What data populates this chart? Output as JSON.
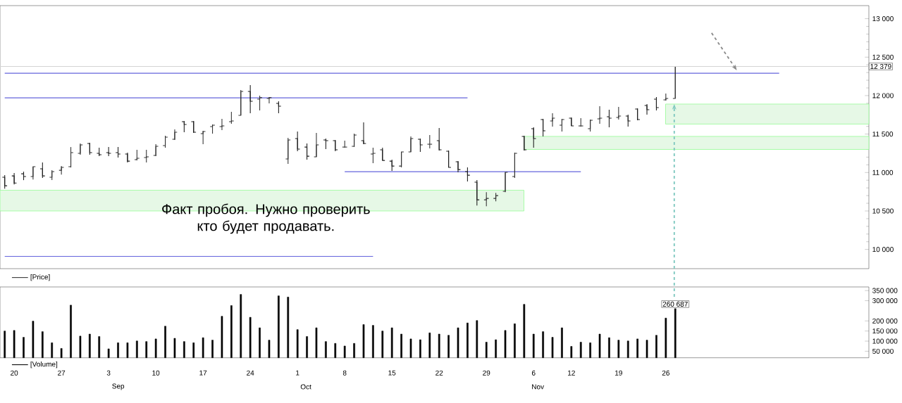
{
  "chart_data": [
    {
      "type": "candlestick",
      "tick_labels": "y",
      "legend": "bottom left",
      "categories": [
        null,
        "20",
        null,
        null,
        null,
        null,
        "27",
        null,
        null,
        null,
        null,
        "3",
        null,
        null,
        null,
        null,
        "10",
        null,
        null,
        null,
        null,
        "17",
        null,
        null,
        null,
        null,
        "24",
        null,
        null,
        null,
        null,
        "1",
        null,
        null,
        null,
        null,
        "8",
        null,
        null,
        null,
        null,
        "15",
        null,
        null,
        null,
        null,
        "22",
        null,
        null,
        null,
        null,
        "29",
        null,
        null,
        null,
        null,
        "6",
        null,
        null,
        null,
        "12",
        null,
        null,
        null,
        null,
        "19",
        null,
        null,
        null,
        null,
        "26",
        null,
        null,
        null,
        null,
        null,
        null,
        null,
        null,
        null,
        null,
        null,
        null,
        null,
        null,
        null,
        null,
        null,
        null,
        null,
        null,
        null
      ],
      "ylim": [
        9750,
        13170
      ],
      "yticks": [
        {
          "value": 10000,
          "label": "10 000"
        },
        {
          "value": 10500,
          "label": "10 500"
        },
        {
          "value": 11000,
          "label": "11 000"
        },
        {
          "value": 11500,
          "label": "11 500"
        },
        {
          "value": 12000,
          "label": "12 000"
        },
        {
          "value": 12500,
          "label": "12 500"
        },
        {
          "value": 13000,
          "label": "13 000"
        }
      ],
      "series": [
        {
          "name": "[Price]",
          "type": "candlestick",
          "color": "#333333",
          "colors": [
            "#1c1c1c",
            "#1c1c1c",
            "#1c1c1c",
            "#333333",
            "#1c1c1c",
            "#333333",
            "#333333",
            "#333333",
            "#333333",
            "#1c1c1c",
            "#1c1c1c",
            "#1c1c1c",
            "#1c1c1c",
            "#1c1c1c",
            "#333333",
            "#333333",
            "#333333",
            "#333333",
            "#333333",
            "#1c1c1c",
            "#1c1c1c",
            "#333333",
            "#333333",
            "#333333",
            "#333333",
            "#333333",
            "#1c1c1c",
            "#333333",
            "#333333",
            "#1c1c1c",
            "#333333",
            "#1c1c1c",
            "#1c1c1c",
            "#333333",
            "#1c1c1c",
            "#1c1c1c",
            "#333333",
            "#333333",
            "#1c1c1c",
            "#333333",
            "#1c1c1c",
            "#1c1c1c",
            "#333333",
            "#333333",
            "#1c1c1c",
            "#333333",
            "#1c1c1c",
            "#1c1c1c",
            "#1c1c1c",
            "#1c1c1c",
            "#1c1c1c",
            "#333333",
            "#333333",
            "#333333",
            "#333333",
            "#1c1c1c",
            "#1c1c1c",
            "#1c1c1c",
            "#333333",
            "#333333",
            "#1c1c1c",
            "#333333",
            "#333333",
            "#333333",
            "#1c1c1c",
            "#333333",
            "#1c1c1c",
            "#1c1c1c",
            "#1c1c1c",
            "#1c1c1c",
            "#333333",
            "#333333",
            null,
            null,
            null,
            null,
            null,
            null,
            null,
            null,
            null,
            null,
            null,
            null,
            null,
            null,
            null,
            null,
            null,
            null,
            null,
            null
          ],
          "ohlc": [
            [
              10938,
              10965,
              10791,
              10828
            ],
            [
              10956,
              10993,
              10846,
              10864
            ],
            [
              10983,
              11011,
              10901,
              10947
            ],
            [
              10947,
              11075,
              10910,
              11075
            ],
            [
              11048,
              11130,
              10929,
              10956
            ],
            [
              10938,
              11029,
              10901,
              11011
            ],
            [
              11029,
              11084,
              10974,
              11066
            ],
            [
              11075,
              11331,
              11066,
              11258
            ],
            [
              11249,
              11377,
              11231,
              11359
            ],
            [
              11377,
              11386,
              11231,
              11258
            ],
            [
              11249,
              11322,
              11212,
              11231
            ],
            [
              11258,
              11331,
              11212,
              11249
            ],
            [
              11258,
              11331,
              11194,
              11240
            ],
            [
              11240,
              11258,
              11130,
              11148
            ],
            [
              11167,
              11295,
              11157,
              11185
            ],
            [
              11194,
              11295,
              11130,
              11203
            ],
            [
              11222,
              11368,
              11212,
              11341
            ],
            [
              11350,
              11478,
              11322,
              11460
            ],
            [
              11432,
              11560,
              11423,
              11524
            ],
            [
              11661,
              11670,
              11524,
              11625
            ],
            [
              11661,
              11670,
              11515,
              11524
            ],
            [
              11505,
              11542,
              11368,
              11533
            ],
            [
              11597,
              11625,
              11505,
              11615
            ],
            [
              11597,
              11698,
              11551,
              11606
            ],
            [
              11661,
              11789,
              11634,
              11670
            ],
            [
              11744,
              12073,
              11744,
              12055
            ],
            [
              12055,
              12137,
              11771,
              11927
            ],
            [
              11954,
              12000,
              11808,
              11973
            ],
            [
              11963,
              11982,
              11899,
              11973
            ],
            [
              11899,
              11927,
              11771,
              11863
            ],
            [
              11176,
              11450,
              11112,
              11423
            ],
            [
              11441,
              11533,
              11277,
              11304
            ],
            [
              11331,
              11377,
              11167,
              11212
            ],
            [
              11203,
              11515,
              11203,
              11359
            ],
            [
              11423,
              11441,
              11304,
              11414
            ],
            [
              11414,
              11423,
              11277,
              11295
            ],
            [
              11331,
              11414,
              11322,
              11331
            ],
            [
              11341,
              11505,
              11331,
              11487
            ],
            [
              11414,
              11652,
              11368,
              11377
            ],
            [
              11240,
              11322,
              11121,
              11249
            ],
            [
              11295,
              11322,
              11157,
              11157
            ],
            [
              11148,
              11167,
              11020,
              11084
            ],
            [
              11084,
              11267,
              11066,
              11267
            ],
            [
              11267,
              11469,
              11267,
              11441
            ],
            [
              11432,
              11441,
              11267,
              11359
            ],
            [
              11368,
              11487,
              11313,
              11368
            ],
            [
              11414,
              11579,
              11286,
              11295
            ],
            [
              11277,
              11286,
              11066,
              11066
            ],
            [
              11139,
              11148,
              11002,
              11038
            ],
            [
              11011,
              11066,
              10883,
              10965
            ],
            [
              10874,
              10901,
              10571,
              10645
            ],
            [
              10645,
              10745,
              10562,
              10663
            ],
            [
              10663,
              10736,
              10626,
              10700
            ],
            [
              10755,
              11002,
              10745,
              11002
            ],
            [
              10947,
              11258,
              10929,
              11249
            ],
            [
              11469,
              11478,
              11286,
              11295
            ],
            [
              11570,
              11588,
              11322,
              11441
            ],
            [
              11689,
              11698,
              11469,
              11542
            ],
            [
              11670,
              11771,
              11597,
              11707
            ],
            [
              11615,
              11698,
              11533,
              11689
            ],
            [
              11707,
              11716,
              11606,
              11606
            ],
            [
              11606,
              11707,
              11597,
              11606
            ],
            [
              11570,
              11689,
              11533,
              11679
            ],
            [
              11698,
              11863,
              11634,
              11707
            ],
            [
              11725,
              11817,
              11588,
              11707
            ],
            [
              11716,
              11853,
              11689,
              11734
            ],
            [
              11734,
              11753,
              11597,
              11670
            ],
            [
              11826,
              11835,
              11679,
              11689
            ],
            [
              11872,
              11890,
              11753,
              11817
            ],
            [
              11954,
              11982,
              11808,
              11844
            ],
            [
              11945,
              12027,
              11936,
              11963
            ],
            [
              11963,
              12379,
              11963,
              12379
            ],
            null,
            null,
            null,
            null,
            null,
            null,
            null,
            null,
            null,
            null,
            null,
            null,
            null,
            null,
            null,
            null,
            null,
            null,
            null,
            null
          ]
        },
        {
          "type": "line",
          "color": "#6464dc",
          "values": [
            12290,
            12290,
            12290,
            12290,
            12290,
            12290,
            12290,
            12290,
            12290,
            12290,
            12290,
            12290,
            12290,
            12290,
            12290,
            12290,
            12290,
            12290,
            12290,
            12290,
            12290,
            12290,
            12290,
            12290,
            12290,
            12290,
            12290,
            12290,
            12290,
            12290,
            12290,
            12290,
            12290,
            12290,
            12290,
            12290,
            12290,
            12290,
            12290,
            12290,
            12290,
            12290,
            12290,
            12290,
            12290,
            12290,
            12290,
            12290,
            12290,
            12290,
            12290,
            12290,
            12290,
            12290,
            12290,
            12290,
            12290,
            12290,
            12290,
            12290,
            12290,
            12290,
            12290,
            12290,
            12290,
            12290,
            12290,
            12290,
            12290,
            12290,
            12290,
            12290,
            12290,
            12290,
            12290,
            12290,
            12290,
            12290,
            12290,
            12290,
            12290,
            12290,
            12290,
            null,
            null,
            null,
            null,
            null,
            null,
            null,
            null,
            null
          ]
        },
        {
          "type": "line",
          "color": "#6464dc",
          "values": [
            11970,
            11970,
            11970,
            11970,
            11970,
            11970,
            11970,
            11970,
            11970,
            11970,
            11970,
            11970,
            11970,
            11970,
            11970,
            11970,
            11970,
            11970,
            11970,
            11970,
            11970,
            11970,
            11970,
            11970,
            11970,
            11970,
            11970,
            11970,
            11970,
            11970,
            11970,
            11970,
            11970,
            11970,
            11970,
            11970,
            11970,
            11970,
            11970,
            11970,
            11970,
            11970,
            11970,
            11970,
            11970,
            11970,
            11970,
            11970,
            11970,
            11970,
            null,
            null,
            null,
            null,
            null,
            null,
            null,
            null,
            null,
            null,
            null,
            null,
            null,
            null,
            null,
            null,
            null,
            null,
            null,
            null,
            null,
            null,
            null,
            null,
            null,
            null,
            null,
            null,
            null,
            null,
            null,
            null,
            null,
            null,
            null,
            null,
            null,
            null,
            null,
            null,
            null,
            null
          ]
        },
        {
          "type": "line",
          "color": "#6464dc",
          "values": [
            null,
            null,
            null,
            null,
            null,
            null,
            null,
            null,
            null,
            null,
            null,
            null,
            null,
            null,
            null,
            null,
            null,
            null,
            null,
            null,
            null,
            null,
            null,
            null,
            null,
            null,
            null,
            null,
            null,
            null,
            null,
            null,
            null,
            null,
            null,
            null,
            11010,
            11010,
            11010,
            11010,
            11010,
            11010,
            11010,
            11010,
            11010,
            11010,
            11010,
            11010,
            11010,
            11010,
            11010,
            11010,
            11010,
            11010,
            11010,
            11010,
            11010,
            11010,
            11010,
            11010,
            11010,
            11010,
            null,
            null,
            null,
            null,
            null,
            null,
            null,
            null,
            null,
            null,
            null,
            null,
            null,
            null,
            null,
            null,
            null,
            null,
            null,
            null,
            null,
            null,
            null,
            null,
            null,
            null,
            null,
            null,
            null,
            null
          ]
        },
        {
          "type": "line",
          "color": "#6464dc",
          "values": [
            9910,
            9910,
            9910,
            9910,
            9910,
            9910,
            9910,
            9910,
            9910,
            9910,
            9910,
            9910,
            9910,
            9910,
            9910,
            9910,
            9910,
            9910,
            9910,
            9910,
            9910,
            9910,
            9910,
            9910,
            9910,
            9910,
            9910,
            9910,
            9910,
            9910,
            9910,
            9910,
            9910,
            9910,
            9910,
            9910,
            9910,
            9910,
            9910,
            9910,
            null,
            null,
            null,
            null,
            null,
            null,
            null,
            null,
            null,
            null,
            null,
            null,
            null,
            null,
            null,
            null,
            null,
            null,
            null,
            null,
            null,
            null,
            null,
            null,
            null,
            null,
            null,
            null,
            null,
            null,
            null,
            null,
            null,
            null,
            null,
            null,
            null,
            null,
            null,
            null,
            null,
            null,
            null,
            null,
            null,
            null,
            null,
            null,
            null,
            null,
            null,
            null
          ]
        }
      ],
      "bands": [
        {
          "axis": "y",
          "from": 10500,
          "to": 10770,
          "color": "#e6f8e6"
        },
        {
          "axis": "y",
          "from": 11300,
          "to": 11470,
          "color": "#e6f8e6"
        },
        {
          "axis": "y",
          "from": 11630,
          "to": 11890,
          "color": "#e6f8e6"
        }
      ],
      "ref_lines": [
        {
          "axis": "y",
          "value": 12379,
          "label": "12 379",
          "color": "#d4d4d4"
        }
      ],
      "annotations": [
        "Факт пробоя. Нужно проверить кто будет продавать."
      ]
    },
    {
      "type": "bar",
      "legend": "bottom left",
      "categories": [
        null,
        "20",
        null,
        null,
        null,
        null,
        "27",
        null,
        null,
        null,
        null,
        "3",
        null,
        null,
        null,
        null,
        "10",
        null,
        null,
        null,
        null,
        "17",
        null,
        null,
        null,
        null,
        "24",
        null,
        null,
        null,
        null,
        "1",
        null,
        null,
        null,
        null,
        "8",
        null,
        null,
        null,
        null,
        "15",
        null,
        null,
        null,
        null,
        "22",
        null,
        null,
        null,
        null,
        "29",
        null,
        null,
        null,
        null,
        "6",
        null,
        null,
        null,
        "12",
        null,
        null,
        null,
        null,
        "19",
        null,
        null,
        null,
        null,
        "26",
        null,
        null,
        null,
        null,
        null,
        null,
        null,
        null,
        null,
        null,
        null,
        null,
        null,
        null,
        null,
        null,
        null,
        null,
        null,
        null,
        null
      ],
      "ylim": [
        17800,
        368000
      ],
      "yticks": [
        {
          "value": 50000,
          "label": "50 000"
        },
        {
          "value": 100000,
          "label": "100 000"
        },
        {
          "value": 150000,
          "label": "150 000"
        },
        {
          "value": 200000,
          "label": "200 000"
        },
        {
          "value": 300000,
          "label": "300 000"
        },
        {
          "value": 350000,
          "label": "350 000"
        }
      ],
      "series": [
        {
          "name": "[Volume]",
          "color": "#000000",
          "values": [
            150000,
            153000,
            119000,
            199000,
            147000,
            92000,
            64000,
            278000,
            125000,
            135000,
            123000,
            62000,
            92000,
            92000,
            101000,
            98000,
            111000,
            174000,
            114000,
            98000,
            92000,
            117000,
            105000,
            223000,
            276000,
            331000,
            218000,
            166000,
            105000,
            324000,
            318000,
            157000,
            123000,
            166000,
            98000,
            89000,
            76000,
            89000,
            182000,
            178000,
            150000,
            166000,
            135000,
            111000,
            107000,
            141000,
            135000,
            129000,
            166000,
            190000,
            202000,
            95000,
            107000,
            153000,
            186000,
            282000,
            135000,
            147000,
            119000,
            166000,
            74000,
            95000,
            92000,
            135000,
            117000,
            105000,
            101000,
            111000,
            105000,
            129000,
            214000,
            260687,
            null,
            null,
            null,
            null,
            null,
            null,
            null,
            null,
            null,
            null,
            null,
            null,
            null,
            null,
            null,
            null,
            null,
            null,
            null,
            null
          ],
          "value_labels": [
            null,
            null,
            null,
            null,
            null,
            null,
            null,
            null,
            null,
            null,
            null,
            null,
            null,
            null,
            null,
            null,
            null,
            null,
            null,
            null,
            null,
            null,
            null,
            null,
            null,
            null,
            null,
            null,
            null,
            null,
            null,
            null,
            null,
            null,
            null,
            null,
            null,
            null,
            null,
            null,
            null,
            null,
            null,
            null,
            null,
            null,
            null,
            null,
            null,
            null,
            null,
            null,
            null,
            null,
            null,
            null,
            null,
            null,
            null,
            null,
            null,
            null,
            null,
            null,
            null,
            null,
            null,
            null,
            null,
            null,
            null,
            "260 687",
            null,
            null,
            null,
            null,
            null,
            null,
            null,
            null,
            null,
            null,
            null,
            null,
            null,
            null,
            null,
            null,
            null,
            null,
            null,
            null
          ]
        }
      ],
      "annotations": [
        "Sep",
        "Oct",
        "Nov"
      ]
    }
  ]
}
